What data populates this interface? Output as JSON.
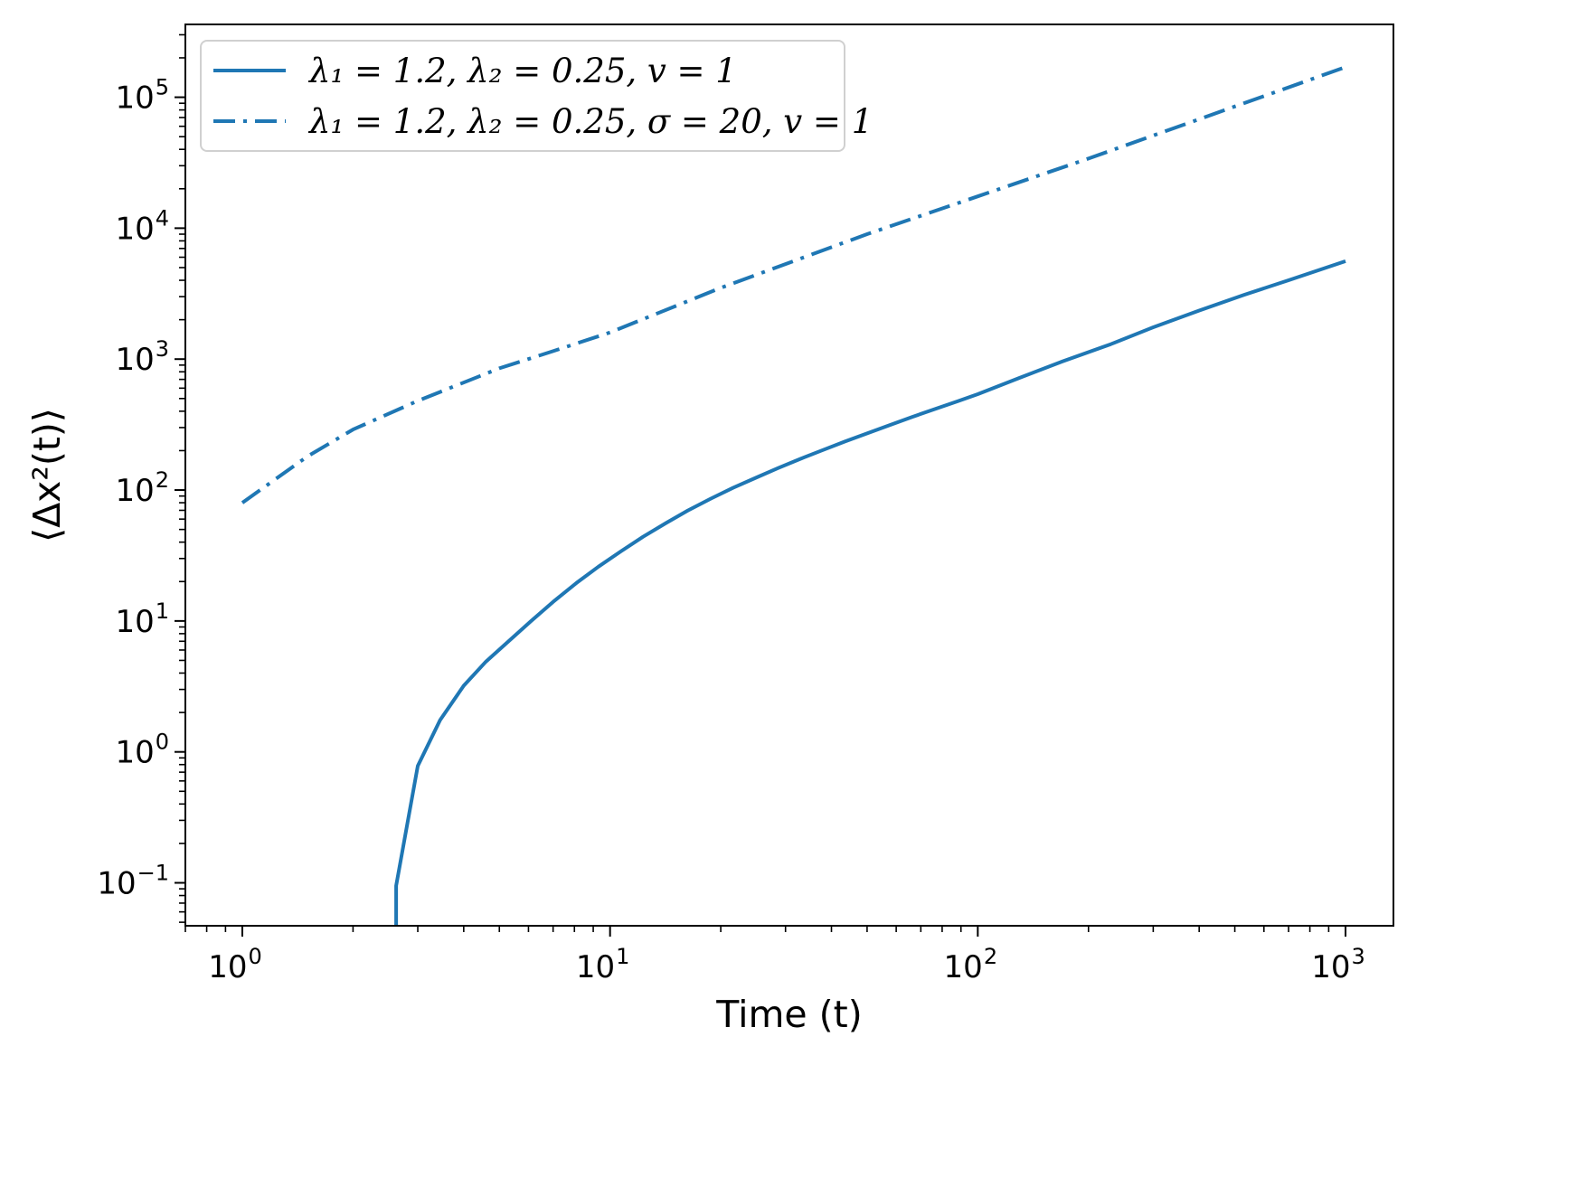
{
  "chart_data": {
    "type": "line",
    "xlabel": "Time (t)",
    "ylabel": "⟨Δx²(t)⟩",
    "xscale": "log",
    "yscale": "log",
    "xlim": [
      0.7,
      1350
    ],
    "ylim": [
      0.047,
      360000
    ],
    "grid": false,
    "legend": "top-left",
    "x_ticks": [
      {
        "value": 1,
        "base": "10",
        "exp": "0"
      },
      {
        "value": 10,
        "base": "10",
        "exp": "1"
      },
      {
        "value": 100,
        "base": "10",
        "exp": "2"
      },
      {
        "value": 1000,
        "base": "10",
        "exp": "3"
      }
    ],
    "y_ticks": [
      {
        "value": 0.1,
        "base": "10",
        "exp": "−1"
      },
      {
        "value": 1,
        "base": "10",
        "exp": "0"
      },
      {
        "value": 10,
        "base": "10",
        "exp": "1"
      },
      {
        "value": 100,
        "base": "10",
        "exp": "2"
      },
      {
        "value": 1000,
        "base": "10",
        "exp": "3"
      },
      {
        "value": 10000,
        "base": "10",
        "exp": "4"
      },
      {
        "value": 100000,
        "base": "10",
        "exp": "5"
      }
    ],
    "series": [
      {
        "name": "λ₁ = 1.2, λ₂ = 0.25, v = 1",
        "style": "solid",
        "color": "#1f77b4",
        "x": [
          2.62,
          2.62,
          3.0,
          3.45,
          4.0,
          4.6,
          5.3,
          6.1,
          7.0,
          8.1,
          9.3,
          10.7,
          12.3,
          14.2,
          16.3,
          18.8,
          21.6,
          24.9,
          28.6,
          32.9,
          37.9,
          43.6,
          50.2,
          57.7,
          66.4,
          76.4,
          87.9,
          100,
          130,
          170,
          230,
          300,
          400,
          530,
          700,
          1000
        ],
        "y": [
          0.047,
          0.095,
          0.78,
          1.75,
          3.2,
          4.9,
          7.0,
          10.0,
          14.0,
          19.5,
          26.0,
          34.0,
          44.0,
          56.0,
          70.0,
          86.0,
          104.0,
          124.0,
          147.0,
          173.0,
          202.0,
          235.0,
          272.0,
          314.0,
          362.0,
          415.0,
          475.0,
          540.0,
          720.0,
          960.0,
          1300.0,
          1750.0,
          2350.0,
          3100.0,
          4000.0,
          5600.0
        ]
      },
      {
        "name": "λ₁ = 1.2, λ₂ = 0.25, σ = 20, v = 1",
        "style": "dashdot",
        "color": "#1f77b4",
        "x": [
          1,
          1.5,
          2,
          3,
          5,
          7,
          10,
          20,
          50,
          100,
          200,
          500,
          1000
        ],
        "y": [
          80,
          180,
          290,
          480,
          850,
          1150,
          1600,
          3500,
          9000,
          17500,
          34000,
          85000,
          170000
        ]
      }
    ]
  }
}
